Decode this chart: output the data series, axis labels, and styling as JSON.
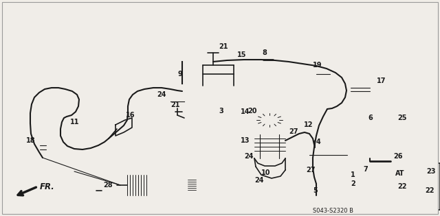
{
  "bg_color": "#f0ede8",
  "line_color": "#1a1a1a",
  "fig_width": 6.4,
  "fig_height": 3.15,
  "dpi": 100,
  "footer_code": "S043-S2320 B",
  "label_fs": 7.0,
  "pipe_lw": 1.5,
  "part_lw": 1.2
}
